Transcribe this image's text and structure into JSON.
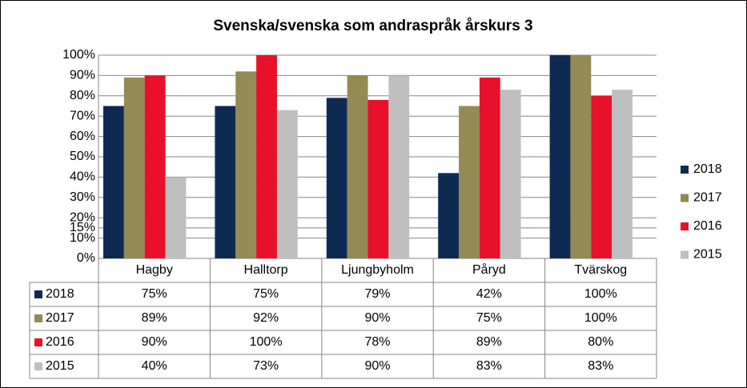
{
  "chart_data": {
    "type": "bar",
    "title": "Svenska/svenska som andraspråk årskurs 3",
    "categories": [
      "Hagby",
      "Halltorp",
      "Ljungbyholm",
      "Påryd",
      "Tvärskog"
    ],
    "series": [
      {
        "name": "2018",
        "color": "#0f2a52",
        "values": [
          75,
          75,
          79,
          42,
          100
        ],
        "value_labels": [
          "75%",
          "75%",
          "79%",
          "42%",
          "100%"
        ]
      },
      {
        "name": "2017",
        "color": "#948a54",
        "values": [
          89,
          92,
          90,
          75,
          100
        ],
        "value_labels": [
          "89%",
          "92%",
          "90%",
          "75%",
          "100%"
        ]
      },
      {
        "name": "2016",
        "color": "#e8102a",
        "values": [
          90,
          100,
          78,
          89,
          80
        ],
        "value_labels": [
          "90%",
          "100%",
          "78%",
          "89%",
          "80%"
        ]
      },
      {
        "name": "2015",
        "color": "#bfbfbf",
        "values": [
          40,
          73,
          90,
          83,
          83
        ],
        "value_labels": [
          "40%",
          "73%",
          "90%",
          "83%",
          "83%"
        ]
      }
    ],
    "ylim": [
      0,
      100
    ],
    "yticks": [
      {
        "value": 0,
        "label": "0%"
      },
      {
        "value": 10,
        "label": "10%"
      },
      {
        "value": 15,
        "label": "15%"
      },
      {
        "value": 20,
        "label": "20%"
      },
      {
        "value": 30,
        "label": "30%"
      },
      {
        "value": 40,
        "label": "40%"
      },
      {
        "value": 50,
        "label": "50%"
      },
      {
        "value": 60,
        "label": "60%"
      },
      {
        "value": 70,
        "label": "70%"
      },
      {
        "value": 80,
        "label": "80%"
      },
      {
        "value": 90,
        "label": "90%"
      },
      {
        "value": 100,
        "label": "100%"
      }
    ],
    "grid": true,
    "legend": "right"
  }
}
